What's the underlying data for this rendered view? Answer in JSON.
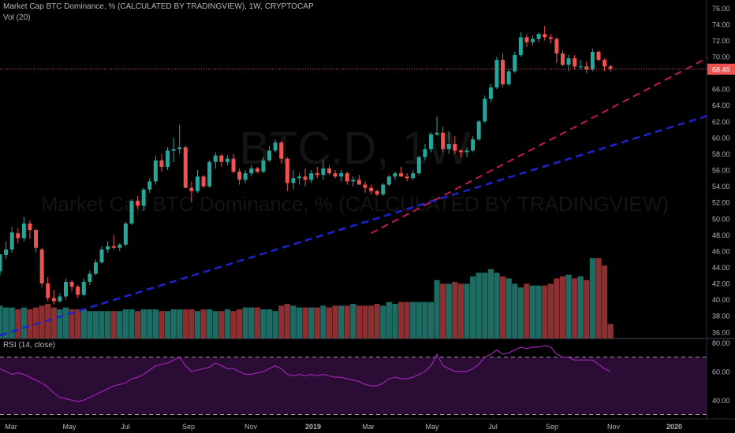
{
  "header": {
    "title": "Market Cap BTC Dominance, % (CALCULATED BY TRADINGVIEW), 1W, CRYPTOCAP",
    "volume_label": "Vol (20)"
  },
  "watermark": {
    "symbol": "BTC.D, 1W",
    "description": "Market Cap BTC Dominance, % (CALCULATED BY TRADINGVIEW)"
  },
  "rsi_panel": {
    "label": "RSI (14, close)"
  },
  "price_axis": {
    "ticks": [
      "76.00",
      "74.00",
      "72.00",
      "70.00",
      "68.46",
      "66.00",
      "64.00",
      "62.00",
      "60.00",
      "58.00",
      "56.00",
      "54.00",
      "52.00",
      "50.00",
      "48.00",
      "46.00",
      "44.00",
      "42.00",
      "40.00",
      "38.00",
      "36.00"
    ],
    "current_price": "68.46"
  },
  "rsi_axis": {
    "ticks": [
      "80.00",
      "60.00",
      "40.00"
    ]
  },
  "time_axis": {
    "ticks": [
      "Mar",
      "May",
      "Jul",
      "Sep",
      "Nov",
      "2019",
      "Mar",
      "May",
      "Jul",
      "Sep",
      "Nov",
      "2020"
    ]
  },
  "colors": {
    "up": "#26a69a",
    "down": "#ef5350",
    "vol_up": "#1e6b63",
    "vol_down": "#8b2f30",
    "trend_blue": "#1e22cc",
    "trend_red": "#c2185b",
    "rsi_line": "#9c27b0",
    "rsi_band": "#2a0c35"
  },
  "chart_data": {
    "type": "candlestick",
    "timeframe": "1W",
    "ylim": [
      35.2,
      77
    ],
    "rsi_ylim": [
      27,
      83
    ],
    "candles": [
      [
        43.5,
        45.6,
        43.0,
        45.6,
        18
      ],
      [
        45.5,
        47.2,
        45.0,
        46.2,
        17
      ],
      [
        46.2,
        49.0,
        45.8,
        48.3,
        17
      ],
      [
        48.2,
        48.8,
        47.0,
        47.6,
        16
      ],
      [
        47.6,
        50.2,
        47.2,
        49.4,
        17
      ],
      [
        49.4,
        49.8,
        47.5,
        48.6,
        16
      ],
      [
        48.6,
        48.8,
        45.8,
        46.4,
        17
      ],
      [
        46.2,
        46.4,
        41.5,
        42.0,
        18
      ],
      [
        42.0,
        42.8,
        39.8,
        40.2,
        19
      ],
      [
        40.2,
        41.2,
        39.4,
        39.8,
        17
      ],
      [
        39.8,
        40.8,
        39.6,
        40.4,
        16
      ],
      [
        40.4,
        42.6,
        40.0,
        42.2,
        17
      ],
      [
        42.2,
        42.4,
        41.0,
        41.6,
        16
      ],
      [
        41.6,
        41.8,
        40.2,
        40.6,
        16
      ],
      [
        40.6,
        42.6,
        40.4,
        42.2,
        16
      ],
      [
        42.2,
        43.6,
        41.8,
        43.2,
        15
      ],
      [
        43.2,
        45.0,
        43.0,
        44.6,
        15
      ],
      [
        44.6,
        46.6,
        44.4,
        46.2,
        15
      ],
      [
        46.2,
        47.2,
        45.8,
        46.6,
        15
      ],
      [
        46.6,
        48.0,
        46.2,
        46.4,
        15
      ],
      [
        46.4,
        47.0,
        46.0,
        46.8,
        15
      ],
      [
        46.8,
        49.6,
        46.6,
        49.4,
        16
      ],
      [
        49.4,
        52.4,
        49.2,
        52.2,
        16
      ],
      [
        52.2,
        52.8,
        51.2,
        51.6,
        15
      ],
      [
        51.6,
        53.8,
        51.0,
        53.6,
        16
      ],
      [
        53.6,
        55.0,
        53.2,
        54.6,
        16
      ],
      [
        54.6,
        57.8,
        54.2,
        57.2,
        16
      ],
      [
        57.2,
        58.0,
        55.8,
        56.4,
        15
      ],
      [
        56.4,
        58.8,
        56.0,
        58.4,
        15
      ],
      [
        58.4,
        60.0,
        57.0,
        58.6,
        16
      ],
      [
        58.6,
        61.6,
        58.0,
        58.8,
        16
      ],
      [
        58.8,
        59.0,
        54.0,
        53.8,
        16
      ],
      [
        53.8,
        54.6,
        52.0,
        53.4,
        16
      ],
      [
        53.4,
        56.0,
        53.2,
        55.2,
        15
      ],
      [
        55.2,
        55.4,
        53.8,
        54.0,
        16
      ],
      [
        54.0,
        57.2,
        53.8,
        57.0,
        16
      ],
      [
        57.0,
        58.2,
        56.2,
        57.8,
        15
      ],
      [
        57.8,
        58.0,
        56.4,
        57.0,
        15
      ],
      [
        57.0,
        57.8,
        56.6,
        57.4,
        16
      ],
      [
        57.4,
        58.0,
        55.6,
        55.8,
        15
      ],
      [
        55.8,
        56.2,
        54.2,
        54.8,
        16
      ],
      [
        54.8,
        56.0,
        54.4,
        55.6,
        17
      ],
      [
        55.6,
        56.6,
        55.2,
        56.2,
        17
      ],
      [
        56.2,
        56.4,
        55.6,
        55.8,
        17
      ],
      [
        55.8,
        57.6,
        55.6,
        57.2,
        16
      ],
      [
        57.2,
        59.0,
        57.0,
        58.4,
        16
      ],
      [
        58.4,
        59.8,
        58.2,
        59.4,
        15
      ],
      [
        59.4,
        59.6,
        56.8,
        57.4,
        18
      ],
      [
        57.4,
        57.6,
        53.4,
        54.4,
        19
      ],
      [
        54.4,
        56.0,
        53.6,
        55.0,
        18
      ],
      [
        55.0,
        55.6,
        54.2,
        55.2,
        17
      ],
      [
        55.2,
        56.2,
        54.0,
        54.8,
        17
      ],
      [
        54.8,
        56.0,
        54.4,
        55.6,
        17
      ],
      [
        55.6,
        56.4,
        55.0,
        55.4,
        17
      ],
      [
        55.4,
        57.2,
        54.8,
        56.2,
        18
      ],
      [
        56.2,
        56.6,
        55.4,
        55.6,
        17
      ],
      [
        55.6,
        56.0,
        55.0,
        55.2,
        18
      ],
      [
        55.2,
        56.0,
        54.6,
        55.6,
        18
      ],
      [
        55.6,
        55.8,
        54.2,
        54.6,
        18
      ],
      [
        54.6,
        55.2,
        54.0,
        54.8,
        19
      ],
      [
        54.8,
        55.4,
        54.2,
        54.2,
        18
      ],
      [
        54.2,
        54.6,
        53.2,
        53.8,
        18
      ],
      [
        53.8,
        54.2,
        53.0,
        53.4,
        18
      ],
      [
        53.4,
        53.6,
        52.8,
        53.0,
        19
      ],
      [
        53.0,
        54.4,
        52.8,
        54.2,
        18
      ],
      [
        54.2,
        55.4,
        54.0,
        55.2,
        20
      ],
      [
        55.2,
        55.8,
        54.8,
        55.6,
        19
      ],
      [
        55.6,
        56.4,
        55.2,
        55.2,
        20
      ],
      [
        55.2,
        55.6,
        54.6,
        55.0,
        20
      ],
      [
        55.0,
        56.0,
        54.8,
        55.6,
        20
      ],
      [
        55.6,
        57.8,
        55.4,
        57.6,
        20
      ],
      [
        57.6,
        59.2,
        57.2,
        58.6,
        20
      ],
      [
        58.6,
        60.6,
        58.2,
        60.4,
        20
      ],
      [
        60.4,
        62.6,
        60.2,
        60.6,
        32
      ],
      [
        60.6,
        61.4,
        58.2,
        58.6,
        30
      ],
      [
        58.6,
        60.8,
        58.0,
        59.2,
        30
      ],
      [
        59.2,
        60.2,
        58.0,
        58.4,
        31
      ],
      [
        58.4,
        58.6,
        57.6,
        58.2,
        30
      ],
      [
        58.2,
        58.8,
        57.6,
        58.4,
        30
      ],
      [
        58.4,
        60.2,
        58.2,
        59.8,
        34
      ],
      [
        59.8,
        62.2,
        59.6,
        62.0,
        36
      ],
      [
        62.0,
        65.2,
        61.8,
        64.8,
        36
      ],
      [
        64.8,
        66.6,
        64.4,
        66.2,
        38
      ],
      [
        66.2,
        70.0,
        66.0,
        69.6,
        36
      ],
      [
        69.6,
        70.4,
        66.2,
        66.6,
        34
      ],
      [
        66.6,
        68.6,
        66.4,
        68.2,
        33
      ],
      [
        68.2,
        70.6,
        68.0,
        70.2,
        30
      ],
      [
        70.2,
        73.0,
        70.0,
        72.4,
        28
      ],
      [
        72.4,
        72.8,
        71.2,
        71.8,
        30
      ],
      [
        71.8,
        72.6,
        71.4,
        72.2,
        29
      ],
      [
        72.2,
        73.0,
        71.8,
        72.8,
        29
      ],
      [
        72.8,
        73.8,
        72.0,
        72.4,
        29
      ],
      [
        72.4,
        72.8,
        71.6,
        72.2,
        30
      ],
      [
        72.2,
        72.4,
        69.2,
        70.4,
        33
      ],
      [
        70.4,
        70.8,
        68.8,
        69.0,
        34
      ],
      [
        69.0,
        70.2,
        68.2,
        69.8,
        35
      ],
      [
        69.8,
        70.2,
        68.4,
        68.8,
        33
      ],
      [
        68.8,
        69.6,
        68.4,
        68.8,
        34
      ],
      [
        68.8,
        69.4,
        68.0,
        68.4,
        32
      ],
      [
        68.4,
        71.0,
        68.2,
        70.6,
        44
      ],
      [
        70.6,
        70.8,
        69.4,
        69.6,
        44
      ],
      [
        69.6,
        69.8,
        68.2,
        68.8,
        40
      ],
      [
        68.8,
        69.0,
        68.2,
        68.5,
        8
      ]
    ],
    "rsi": [
      62,
      60,
      58,
      59,
      58,
      56,
      54,
      52,
      49,
      45,
      42,
      41,
      40,
      39,
      40,
      42,
      44,
      46,
      48,
      50,
      51,
      52,
      55,
      56,
      58,
      61,
      64,
      65,
      66,
      68,
      70,
      64,
      60,
      61,
      62,
      63,
      66,
      64,
      62,
      62,
      60,
      58,
      58,
      59,
      60,
      62,
      64,
      62,
      58,
      57,
      58,
      57,
      58,
      57,
      58,
      57,
      56,
      56,
      55,
      54,
      53,
      51,
      50,
      50,
      52,
      55,
      56,
      55,
      55,
      56,
      58,
      60,
      64,
      72,
      64,
      62,
      60,
      60,
      60,
      62,
      65,
      70,
      72,
      75,
      72,
      73,
      75,
      77,
      76,
      77,
      77,
      78,
      77,
      72,
      70,
      70,
      68,
      68,
      68,
      68,
      65,
      62,
      60
    ],
    "trendlines": [
      {
        "color": "blue",
        "from": [
          0,
          35.6
        ],
        "to": [
          130,
          65.4
        ]
      },
      {
        "color": "red",
        "from": [
          62,
          48.2
        ],
        "to": [
          130,
          74.4
        ]
      }
    ],
    "current_price": 68.46,
    "grid": false,
    "legend": "top-left"
  }
}
